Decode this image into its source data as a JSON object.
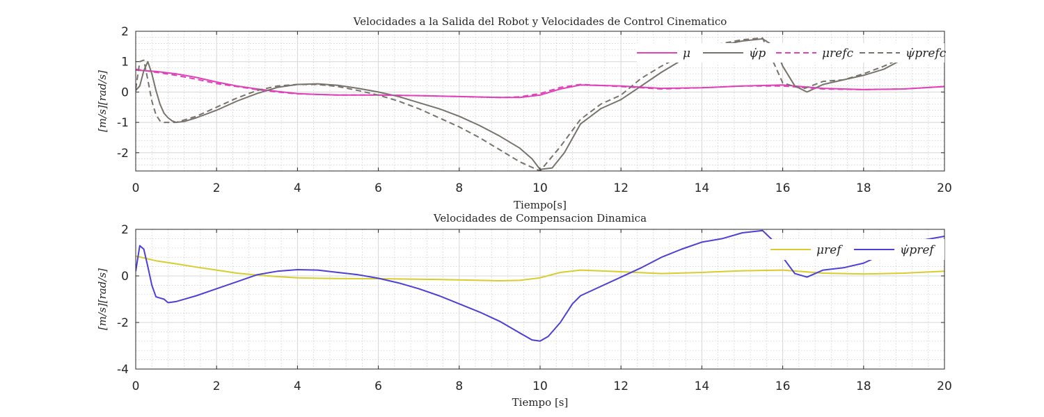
{
  "chart_data": [
    {
      "type": "line",
      "title": "Velocidades a la Salida del Robot y Velocidades de Control Cinematico",
      "xlabel": "Tiempo[s]",
      "ylabel": "[m/s][rad/s]",
      "xlim": [
        0,
        20
      ],
      "ylim": [
        -2.6,
        2
      ],
      "xticks": [
        "0",
        "2",
        "4",
        "6",
        "8",
        "10",
        "12",
        "14",
        "16",
        "18",
        "20"
      ],
      "yticks": [
        "2",
        "1",
        "0",
        "-1",
        "-2"
      ],
      "grid": true,
      "legend_placement": "top-right",
      "series": [
        {
          "name": "μ",
          "color": "#e040b8",
          "dash": "solid",
          "x": [
            0,
            0.5,
            1,
            1.5,
            2,
            2.5,
            3,
            3.5,
            4,
            4.5,
            5,
            6,
            7,
            8,
            9,
            9.5,
            10,
            10.5,
            11,
            12,
            13,
            14,
            15,
            16,
            17,
            18,
            19,
            20
          ],
          "y": [
            0.72,
            0.68,
            0.6,
            0.48,
            0.33,
            0.2,
            0.1,
            0.02,
            -0.05,
            -0.08,
            -0.1,
            -0.1,
            -0.12,
            -0.15,
            -0.18,
            -0.18,
            -0.1,
            0.1,
            0.23,
            0.2,
            0.12,
            0.14,
            0.2,
            0.23,
            0.12,
            0.08,
            0.1,
            0.18
          ]
        },
        {
          "name": "ψ̇p",
          "color": "#77736b",
          "dash": "solid",
          "x": [
            0,
            0.1,
            0.2,
            0.3,
            0.4,
            0.5,
            0.6,
            0.7,
            0.8,
            0.9,
            1.0,
            1.2,
            1.5,
            2,
            2.5,
            3,
            3.5,
            4,
            4.5,
            5,
            5.5,
            6,
            6.5,
            7,
            7.5,
            8,
            8.5,
            9,
            9.5,
            9.8,
            10,
            10.3,
            10.6,
            11,
            11.5,
            12,
            12.5,
            13,
            13.5,
            14,
            14.5,
            15,
            15.5,
            15.8,
            16,
            16.3,
            16.6,
            17,
            17.5,
            18,
            18.5,
            19,
            19.5,
            20
          ],
          "y": [
            0.05,
            0.2,
            0.7,
            1.0,
            0.6,
            0.05,
            -0.4,
            -0.7,
            -0.85,
            -0.95,
            -1.0,
            -0.97,
            -0.85,
            -0.6,
            -0.3,
            -0.05,
            0.15,
            0.25,
            0.27,
            0.22,
            0.12,
            0.0,
            -0.15,
            -0.35,
            -0.55,
            -0.8,
            -1.1,
            -1.45,
            -1.85,
            -2.2,
            -2.55,
            -2.5,
            -2.0,
            -1.05,
            -0.55,
            -0.25,
            0.2,
            0.65,
            1.05,
            1.35,
            1.55,
            1.68,
            1.75,
            1.5,
            0.85,
            0.2,
            0.0,
            0.25,
            0.4,
            0.55,
            0.75,
            1.1,
            1.35,
            1.5
          ]
        },
        {
          "name": "μrefc",
          "color": "#e040b8",
          "dash": "dashed",
          "x": [
            0,
            0.5,
            1,
            1.5,
            2,
            2.5,
            3,
            3.5,
            4,
            4.5,
            5,
            6,
            7,
            8,
            9,
            9.5,
            10,
            10.5,
            11,
            12,
            13,
            14,
            15,
            16,
            17,
            18,
            19,
            20
          ],
          "y": [
            0.75,
            0.65,
            0.55,
            0.42,
            0.28,
            0.18,
            0.08,
            0.0,
            -0.06,
            -0.08,
            -0.1,
            -0.1,
            -0.12,
            -0.15,
            -0.18,
            -0.16,
            -0.05,
            0.15,
            0.25,
            0.18,
            0.1,
            0.14,
            0.2,
            0.2,
            0.1,
            0.08,
            0.1,
            0.18
          ]
        },
        {
          "name": "ψ̇prefc",
          "color": "#77736b",
          "dash": "dashed",
          "x": [
            0,
            0.1,
            0.2,
            0.3,
            0.4,
            0.5,
            0.6,
            0.7,
            0.8,
            1.0,
            1.5,
            2,
            2.5,
            3,
            3.5,
            4,
            4.5,
            5,
            5.5,
            6,
            6.5,
            7,
            7.5,
            8,
            8.5,
            9,
            9.5,
            10,
            10.5,
            11,
            11.5,
            12,
            12.5,
            13,
            13.5,
            14,
            14.5,
            15,
            15.5,
            16,
            16.5,
            17,
            17.5,
            18,
            18.5,
            19,
            19.5,
            20
          ],
          "y": [
            0.1,
            1.0,
            1.05,
            0.4,
            -0.3,
            -0.75,
            -0.95,
            -1.0,
            -1.0,
            -1.0,
            -0.8,
            -0.5,
            -0.2,
            0.05,
            0.2,
            0.25,
            0.25,
            0.18,
            0.05,
            -0.1,
            -0.3,
            -0.55,
            -0.85,
            -1.15,
            -1.5,
            -1.9,
            -2.3,
            -2.6,
            -1.8,
            -0.9,
            -0.4,
            -0.1,
            0.45,
            0.85,
            1.2,
            1.45,
            1.6,
            1.72,
            1.78,
            0.3,
            0.1,
            0.35,
            0.4,
            0.6,
            0.85,
            1.15,
            1.4,
            1.6
          ]
        }
      ]
    },
    {
      "type": "line",
      "title": "Velocidades de Compensacion Dinamica",
      "xlabel": "Tiempo [s]",
      "ylabel": "[m/s][rad/s]",
      "xlim": [
        0,
        20
      ],
      "ylim": [
        -4,
        2
      ],
      "xticks": [
        "0",
        "2",
        "4",
        "6",
        "8",
        "10",
        "12",
        "14",
        "16",
        "18",
        "20"
      ],
      "yticks": [
        "2",
        "0",
        "-2",
        "-4"
      ],
      "grid": true,
      "legend_placement": "top-right",
      "series": [
        {
          "name": "μref",
          "color": "#d9cc2e",
          "dash": "solid",
          "x": [
            0,
            0.5,
            1,
            1.5,
            2,
            2.5,
            3,
            3.5,
            4,
            4.5,
            5,
            6,
            7,
            8,
            9,
            9.5,
            10,
            10.5,
            11,
            12,
            13,
            14,
            15,
            16,
            17,
            18,
            19,
            20
          ],
          "y": [
            0.85,
            0.65,
            0.52,
            0.38,
            0.25,
            0.12,
            0.04,
            -0.03,
            -0.08,
            -0.1,
            -0.11,
            -0.12,
            -0.14,
            -0.17,
            -0.21,
            -0.19,
            -0.08,
            0.15,
            0.25,
            0.18,
            0.1,
            0.15,
            0.22,
            0.25,
            0.12,
            0.08,
            0.12,
            0.2
          ]
        },
        {
          "name": "ψ̇pref",
          "color": "#4b3fd6",
          "dash": "solid",
          "x": [
            0,
            0.1,
            0.2,
            0.3,
            0.4,
            0.5,
            0.6,
            0.7,
            0.8,
            1.0,
            1.5,
            2,
            2.5,
            3,
            3.5,
            4,
            4.5,
            5,
            5.5,
            6,
            6.5,
            7,
            7.5,
            8,
            8.5,
            9,
            9.5,
            9.8,
            10,
            10.2,
            10.5,
            10.8,
            11,
            11.5,
            12,
            12.5,
            13,
            13.5,
            14,
            14.5,
            15,
            15.5,
            15.8,
            16,
            16.3,
            16.6,
            17,
            17.5,
            18,
            18.5,
            19,
            19.5,
            20
          ],
          "y": [
            0.2,
            1.3,
            1.15,
            0.4,
            -0.4,
            -0.9,
            -0.95,
            -1.0,
            -1.15,
            -1.1,
            -0.85,
            -0.55,
            -0.25,
            0.05,
            0.2,
            0.27,
            0.25,
            0.15,
            0.05,
            -0.1,
            -0.3,
            -0.55,
            -0.85,
            -1.2,
            -1.55,
            -1.95,
            -2.45,
            -2.75,
            -2.8,
            -2.6,
            -2.0,
            -1.2,
            -0.85,
            -0.45,
            -0.05,
            0.35,
            0.8,
            1.15,
            1.45,
            1.6,
            1.85,
            1.95,
            1.45,
            0.8,
            0.1,
            -0.05,
            0.25,
            0.35,
            0.55,
            0.95,
            1.3,
            1.55,
            1.7
          ]
        }
      ]
    }
  ]
}
